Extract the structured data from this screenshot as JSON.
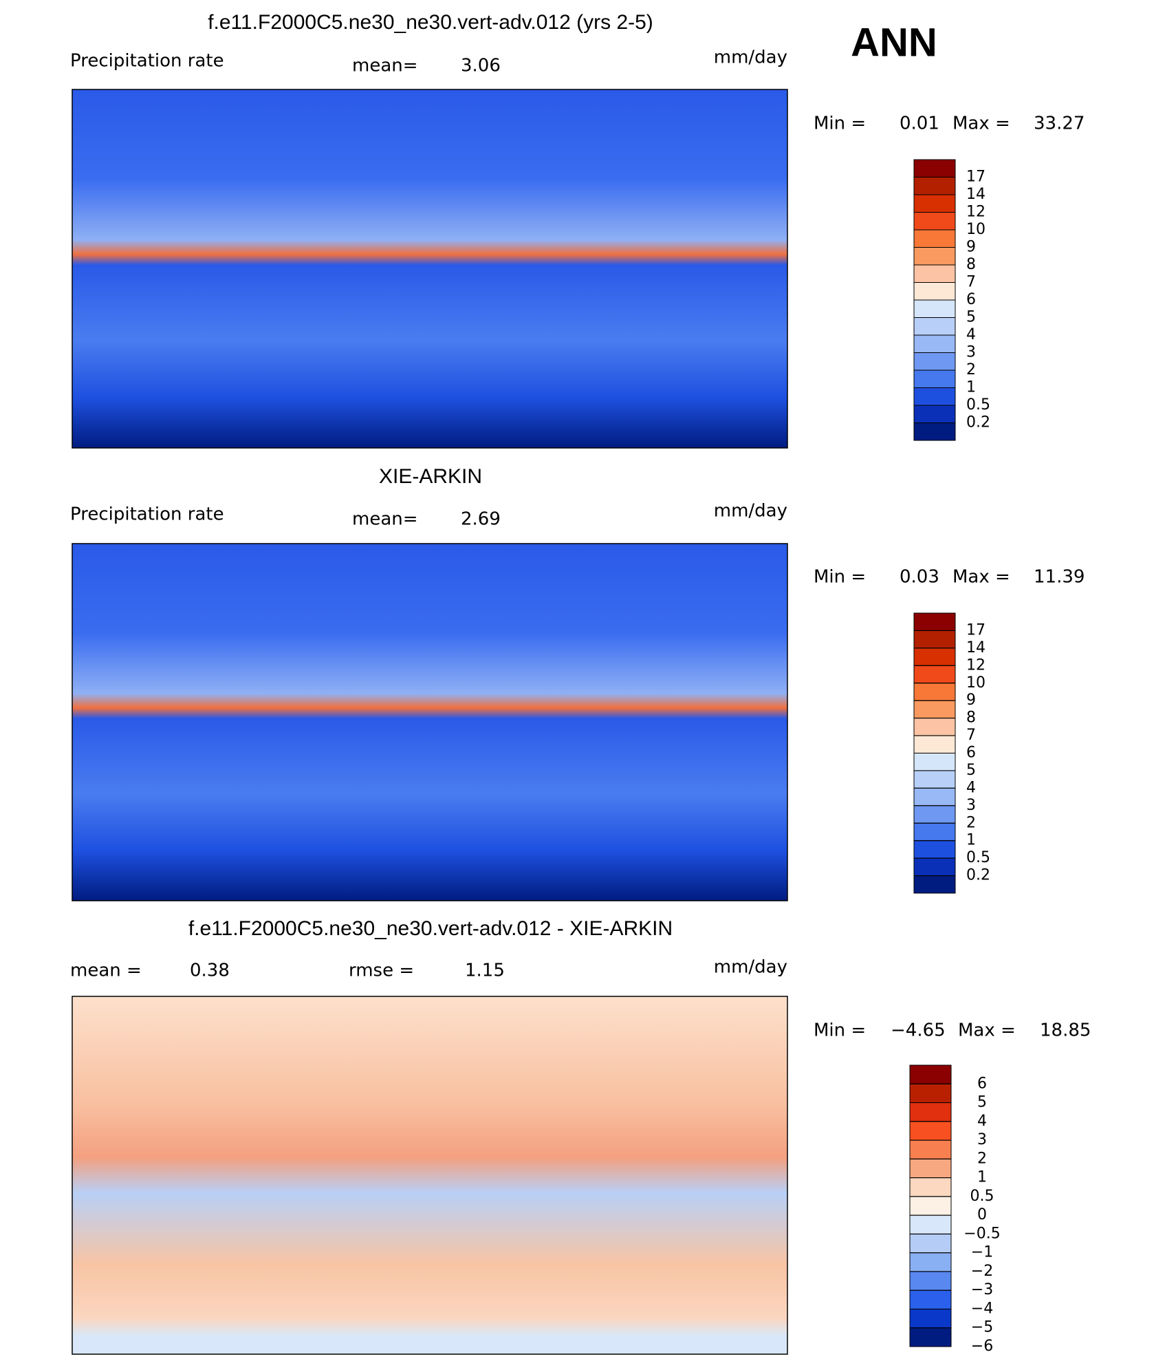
{
  "season": "ANN",
  "panels": [
    {
      "title": "f.e11.F2000C5.ne30_ne30.vert-adv.012 (yrs 2-5)",
      "left_label": "Precipitation rate",
      "mean_label": "mean=",
      "mean": 3.06,
      "units": "mm/day",
      "min_label": "Min =",
      "min": 0.01,
      "max_label": "Max =",
      "max": 33.27,
      "colorbar": {
        "levels": [
          17,
          14,
          12,
          10,
          9,
          8,
          7,
          6,
          5,
          4,
          3,
          2,
          1,
          0.5,
          0.2
        ],
        "colors": [
          "#8b0000",
          "#b22000",
          "#d83000",
          "#f04a1a",
          "#f87838",
          "#fa9a60",
          "#fcc4a4",
          "#fde8d6",
          "#d6e6fa",
          "#b8d0f8",
          "#98b8f6",
          "#6e98f2",
          "#4678ee",
          "#1e50e0",
          "#0a30b8",
          "#001c80"
        ]
      }
    },
    {
      "title": "XIE-ARKIN",
      "left_label": "Precipitation rate",
      "mean_label": "mean=",
      "mean": 2.69,
      "units": "mm/day",
      "min_label": "Min =",
      "min": 0.03,
      "max_label": "Max =",
      "max": 11.39,
      "colorbar": {
        "levels": [
          17,
          14,
          12,
          10,
          9,
          8,
          7,
          6,
          5,
          4,
          3,
          2,
          1,
          0.5,
          0.2
        ],
        "colors": [
          "#8b0000",
          "#b22000",
          "#d83000",
          "#f04a1a",
          "#f87838",
          "#fa9a60",
          "#fcc4a4",
          "#fde8d6",
          "#d6e6fa",
          "#b8d0f8",
          "#98b8f6",
          "#6e98f2",
          "#4678ee",
          "#1e50e0",
          "#0a30b8",
          "#001c80"
        ]
      }
    },
    {
      "title": "f.e11.F2000C5.ne30_ne30.vert-adv.012 - XIE-ARKIN",
      "mean_label": "mean =",
      "mean": 0.38,
      "rmse_label": "rmse =",
      "rmse": 1.15,
      "units": "mm/day",
      "min_label": "Min =",
      "min": {
        "value": -4.65,
        "label": "−4.65"
      },
      "max_label": "Max =",
      "max": 18.85,
      "colorbar": {
        "levels": [
          6,
          5,
          4,
          3,
          2,
          1,
          0.5,
          0,
          {
            "value": -0.5,
            "label": "−0.5"
          },
          {
            "value": -1,
            "label": "−1"
          },
          {
            "value": -2,
            "label": "−2"
          },
          {
            "value": -3,
            "label": "−3"
          },
          {
            "value": -4,
            "label": "−4"
          },
          {
            "value": -5,
            "label": "−5"
          },
          {
            "value": -6,
            "label": "−6"
          }
        ],
        "colors": [
          "#8b0000",
          "#b82000",
          "#e03010",
          "#f85020",
          "#f88050",
          "#f8a880",
          "#fcd8c0",
          "#fdf0e4",
          "#d8e8fa",
          "#b4ccf6",
          "#8ab0f4",
          "#5888f0",
          "#2a60ec",
          "#0a38c8",
          "#001c80"
        ]
      }
    }
  ]
}
